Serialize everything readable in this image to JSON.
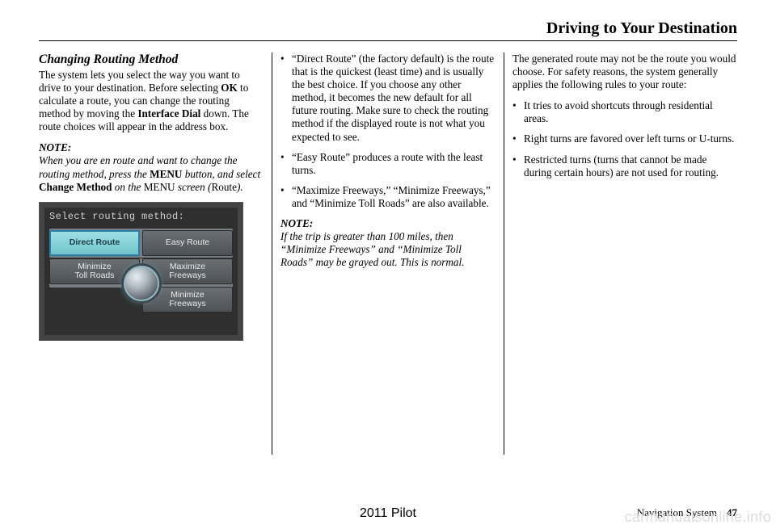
{
  "header": {
    "title": "Driving to Your Destination"
  },
  "col1": {
    "heading": "Changing Routing Method",
    "para1_parts": {
      "a": "The system lets you select the way you want to drive to your destination. Before selecting ",
      "b": "OK",
      "c": " to calculate a route, you can change the routing method by moving the ",
      "d": "Interface Dial",
      "e": " down. The route choices will appear in the address box."
    },
    "note_label": "NOTE:",
    "note_parts": {
      "a": "When you are en route and want to change the routing method, press the ",
      "b": "MENU",
      "c": " button, and select ",
      "d": "Change Method",
      "e": " on the ",
      "f": "MENU",
      "g": " screen (",
      "h": "Route",
      "i": ")."
    },
    "screenshot": {
      "title": "Select routing method:",
      "buttons": {
        "direct": "Direct Route",
        "easy": "Easy Route",
        "min_toll": "Minimize\nToll Roads",
        "max_fwy": "Maximize\nFreeways",
        "min_fwy": "Minimize\nFreeways"
      },
      "colors": {
        "frame": "#444444",
        "inner": "#2f2f2f",
        "btn_grad_top": "#6a6f73",
        "btn_grad_bot": "#4d5256",
        "active_grad_top": "#9fe0e6",
        "active_grad_bot": "#71c3cb",
        "active_border": "#2b7fa8"
      }
    }
  },
  "col2": {
    "bullets": [
      "“Direct Route” (the factory default) is the route that is the quickest (least time) and is usually the best choice. If you choose any other method, it becomes the new default for all future routing. Make sure to check the routing method if the displayed route is not what you expected to see.",
      "“Easy Route” produces a route with the least turns.",
      "“Maximize Freeways,” “Minimize Freeways,” and “Minimize Toll Roads” are also available."
    ],
    "note_label": "NOTE:",
    "note_text": "If the trip is greater than 100 miles, then “Minimize Freeways” and “Minimize Toll Roads” may be grayed out. This is normal."
  },
  "col3": {
    "para": "The generated route may not be the route you would choose. For safety reasons, the system generally applies the following rules to your route:",
    "bullets": [
      "It tries to avoid shortcuts through residential areas.",
      "Right turns are favored over left turns or U-turns.",
      "Restricted turns (turns that cannot be made during certain hours) are not used for routing."
    ]
  },
  "footer": {
    "center": "2011 Pilot",
    "right_label": "Navigation System",
    "page_number": "47"
  },
  "watermark": "carmanualsonline.info"
}
